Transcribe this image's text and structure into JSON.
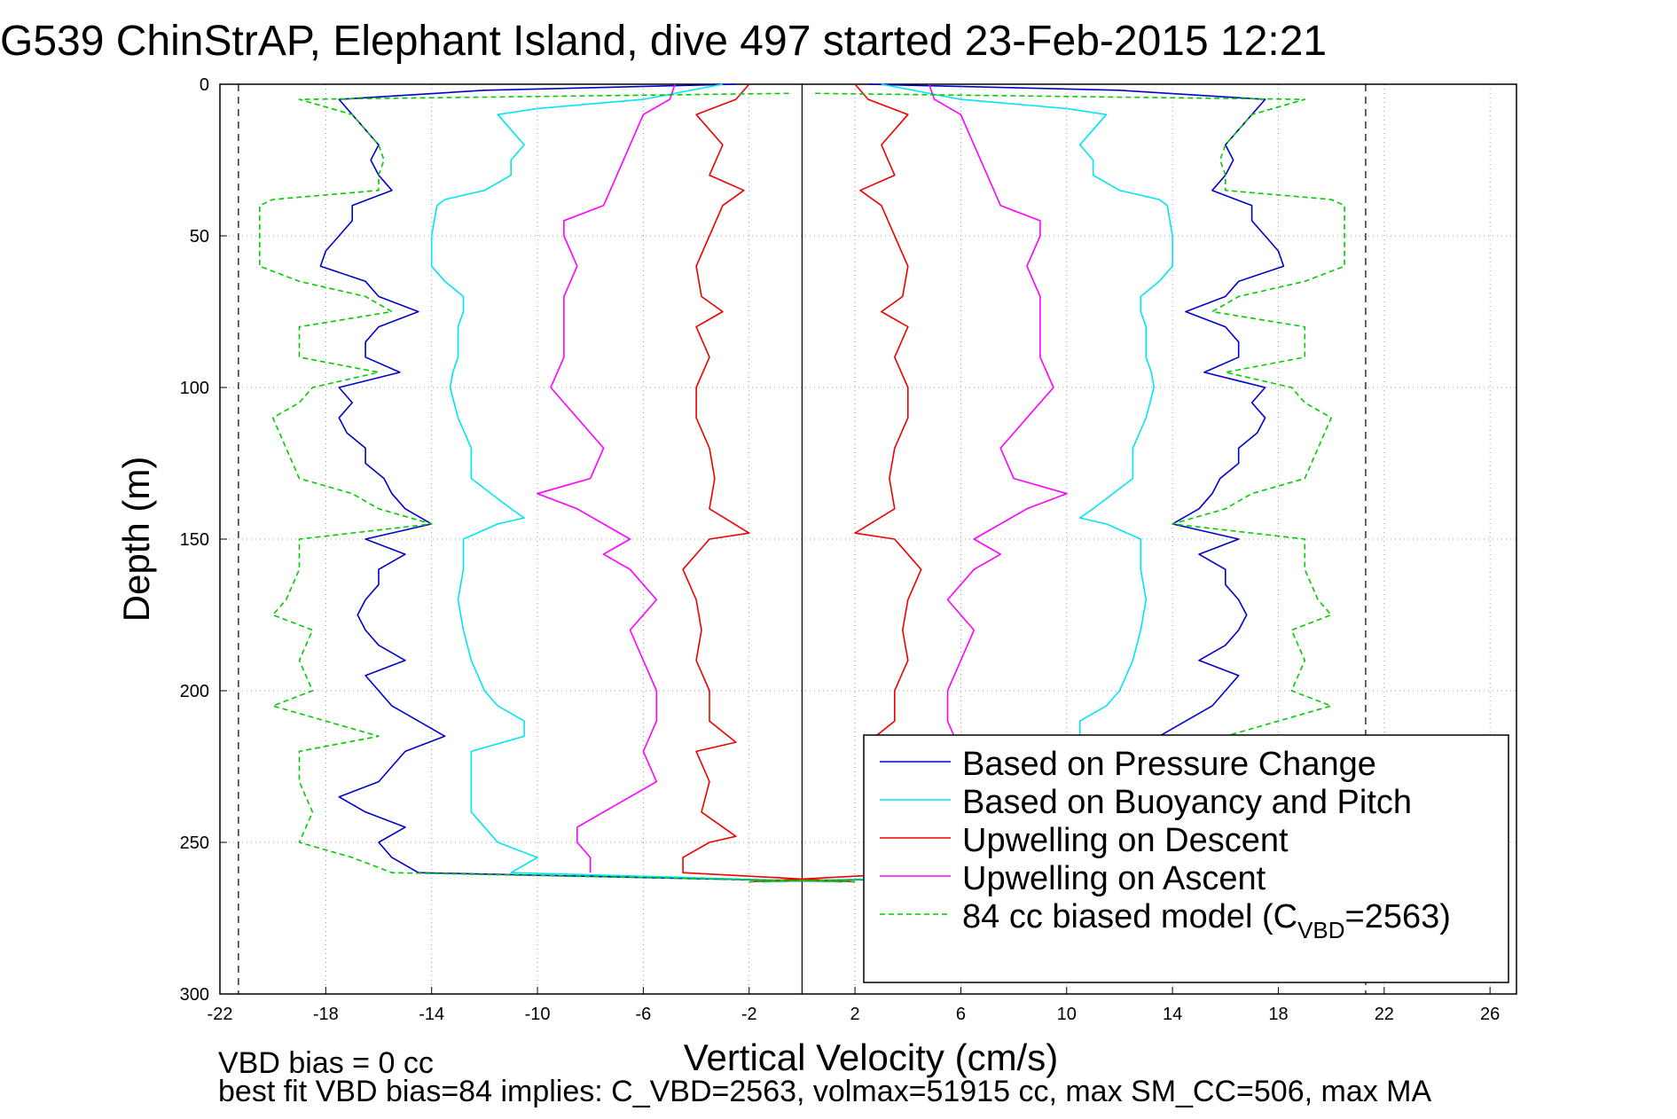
{
  "chart_data": {
    "type": "line",
    "title": "G539 ChinStrAP, Elephant Island, dive 497 started 23-Feb-2015 12:21",
    "xlabel": "Vertical Velocity (cm/s)",
    "ylabel": "Depth (m)",
    "xlim": [
      -22,
      27
    ],
    "ylim": [
      300,
      0
    ],
    "y_reversed": true,
    "grid": true,
    "x_ticks": [
      -22,
      -18,
      -14,
      -10,
      -6,
      -2,
      2,
      6,
      10,
      14,
      18,
      22,
      26
    ],
    "x_tick_labels": [
      "-22",
      "-18",
      "-14",
      "-10",
      "-6",
      "-2",
      "2",
      "6",
      "10",
      "14",
      "18",
      "22",
      "26"
    ],
    "y_ticks": [
      0,
      50,
      100,
      150,
      200,
      250,
      300
    ],
    "y_tick_labels": [
      "0",
      "50",
      "100",
      "150",
      "200",
      "250",
      "300"
    ],
    "reference_lines": {
      "zero_velocity": 0,
      "dashed_limits": [
        -21.3,
        21.3
      ]
    },
    "legend_placement": "bottom-right",
    "legend": [
      {
        "label": "Based on Pressure Change",
        "color": "#0000cc",
        "dash": false
      },
      {
        "label": "Based on Buoyancy and Pitch",
        "color": "#00e5ee",
        "dash": false
      },
      {
        "label": "Upwelling on Descent",
        "color": "#ee0000",
        "dash": false
      },
      {
        "label": "Upwelling on Ascent",
        "color": "#ff00ff",
        "dash": false
      },
      {
        "label": "84 cc biased model (C",
        "sub": "VBD",
        "suffix": "=2563)",
        "color": "#00cc00",
        "dash": true
      }
    ],
    "series": [
      {
        "name": "Based on Pressure Change",
        "color": "#0000cc",
        "depth": [
          0,
          2,
          5,
          10,
          15,
          20,
          25,
          30,
          35,
          40,
          45,
          50,
          55,
          60,
          65,
          70,
          75,
          80,
          85,
          90,
          95,
          100,
          105,
          110,
          115,
          120,
          125,
          130,
          135,
          140,
          145,
          150,
          155,
          160,
          165,
          170,
          175,
          180,
          185,
          190,
          195,
          200,
          205,
          210,
          215,
          220,
          225,
          230,
          235,
          240,
          245,
          250,
          255,
          260,
          263
        ],
        "values": [
          -2.5,
          -12,
          -17.5,
          -17,
          -16.5,
          -16,
          -16.3,
          -16,
          -15.5,
          -17,
          -17,
          -17.5,
          -18,
          -18.2,
          -16.5,
          -16,
          -14.5,
          -16,
          -16.5,
          -16.5,
          -15.2,
          -17.5,
          -17,
          -17.5,
          -17.2,
          -16.5,
          -16.5,
          -15.8,
          -15.5,
          -15,
          -14,
          -16.5,
          -15,
          -16,
          -16,
          -16.5,
          -16.8,
          -16.5,
          -16,
          -15,
          -16.5,
          -16,
          -15.5,
          -14.5,
          -13.5,
          -15,
          -15.5,
          -16,
          -17.5,
          -16.5,
          -15,
          -16,
          -15.5,
          -14.5,
          1.5
        ]
      },
      {
        "name": "Based on Buoyancy and Pitch",
        "color": "#00e5ee",
        "depth": [
          0,
          5,
          8,
          10,
          15,
          20,
          25,
          30,
          35,
          38,
          40,
          50,
          60,
          65,
          70,
          75,
          80,
          85,
          90,
          95,
          100,
          110,
          120,
          130,
          140,
          143,
          145,
          150,
          160,
          170,
          180,
          190,
          200,
          205,
          210,
          215,
          220,
          230,
          240,
          250,
          255,
          260,
          263
        ],
        "values": [
          -3,
          -6,
          -10,
          -11.5,
          -11,
          -10.5,
          -11,
          -11,
          -12,
          -13.5,
          -13.8,
          -14,
          -14,
          -13.5,
          -12.8,
          -12.8,
          -13,
          -13,
          -13,
          -13.2,
          -13.3,
          -13,
          -12.5,
          -12.5,
          -11,
          -10.5,
          -11.5,
          -12.8,
          -12.8,
          -13,
          -12.8,
          -12.5,
          -12,
          -11.5,
          -10.5,
          -10.5,
          -12.5,
          -12.5,
          -12.5,
          -11.5,
          -10,
          -11,
          1.5
        ]
      },
      {
        "name": "Upwelling on Descent",
        "color": "#ee0000",
        "depth": [
          0,
          5,
          10,
          20,
          30,
          35,
          40,
          50,
          60,
          70,
          75,
          80,
          90,
          100,
          110,
          120,
          130,
          140,
          148,
          150,
          160,
          170,
          180,
          190,
          200,
          210,
          217,
          220,
          230,
          240,
          248,
          250,
          255,
          260,
          263
        ],
        "values": [
          -2,
          -2.5,
          -4,
          -3,
          -3.5,
          -2.2,
          -3,
          -3.5,
          -4,
          -3.8,
          -3,
          -4,
          -3.5,
          -4,
          -4,
          -3.5,
          -3.3,
          -3.5,
          -2,
          -3.5,
          -4.5,
          -4,
          -3.8,
          -4,
          -3.5,
          -3.5,
          -2.5,
          -4,
          -3.5,
          -3.8,
          -2.5,
          -3.5,
          -4.5,
          -4.5,
          2
        ]
      },
      {
        "name": "Upwelling on Ascent",
        "color": "#ff00ff",
        "depth": [
          0,
          5,
          10,
          20,
          30,
          40,
          45,
          50,
          60,
          70,
          80,
          90,
          100,
          110,
          120,
          130,
          135,
          140,
          150,
          155,
          160,
          170,
          180,
          190,
          200,
          210,
          220,
          230,
          240,
          245,
          250,
          255,
          260
        ],
        "values": [
          -4.8,
          -5,
          -6,
          -6.5,
          -7,
          -7.5,
          -9,
          -9,
          -8.5,
          -9,
          -9,
          -9,
          -9.5,
          -8.5,
          -7.5,
          -8,
          -10,
          -8.5,
          -6.5,
          -7.5,
          -6.5,
          -5.5,
          -6.5,
          -6,
          -5.5,
          -5.5,
          -6,
          -5.5,
          -7.5,
          -8.5,
          -8.5,
          -8,
          -8
        ]
      },
      {
        "name": "84 cc biased model",
        "color": "#00cc00",
        "dashed": true,
        "depth": [
          3,
          5,
          10,
          15,
          20,
          25,
          30,
          35,
          38,
          40,
          45,
          50,
          60,
          65,
          70,
          75,
          80,
          85,
          90,
          95,
          100,
          105,
          110,
          120,
          130,
          135,
          140,
          145,
          150,
          160,
          170,
          175,
          180,
          190,
          200,
          205,
          210,
          215,
          220,
          230,
          240,
          250,
          255,
          260,
          263
        ],
        "values": [
          -0.5,
          -19,
          -17,
          -16.5,
          -16,
          -15.8,
          -16,
          -16,
          -20,
          -20.5,
          -20.5,
          -20.5,
          -20.5,
          -19,
          -16.5,
          -15.5,
          -19,
          -19,
          -19,
          -16,
          -18.5,
          -19,
          -20,
          -19.5,
          -19,
          -17,
          -16,
          -14,
          -19,
          -19,
          -19.5,
          -20,
          -18.5,
          -19,
          -18.5,
          -20,
          -18,
          -16,
          -19,
          -19,
          -18.5,
          -19,
          -17,
          -15.5,
          2
        ]
      }
    ]
  },
  "footer": {
    "line1": "VBD bias = 0 cc",
    "line2": "best fit VBD bias=84 implies: C_VBD=2563, volmax=51915 cc, max SM_CC=506, max MA"
  }
}
